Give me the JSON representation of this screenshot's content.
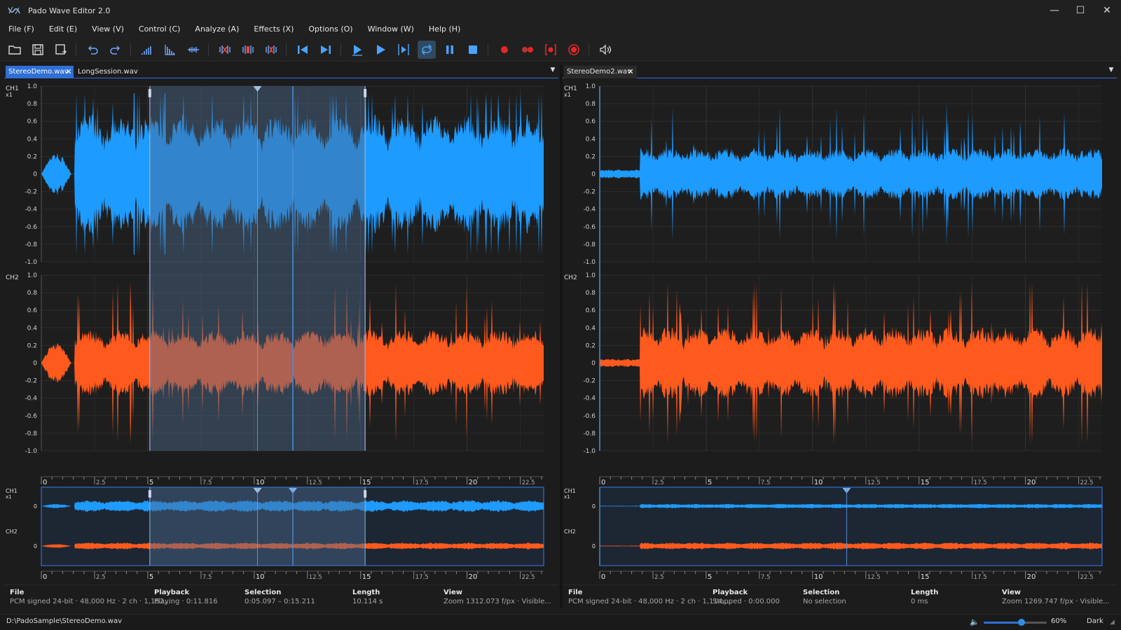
{
  "app": {
    "title": "Pado Wave Editor 2.0"
  },
  "window_controls": {
    "minimize": "—",
    "maximize": "☐",
    "close": "✕"
  },
  "menu": [
    "File (F)",
    "Edit (E)",
    "View (V)",
    "Control (C)",
    "Analyze (A)",
    "Effects (X)",
    "Options (O)",
    "Window (W)",
    "Help (H)"
  ],
  "toolbar": [
    {
      "name": "open-folder-icon",
      "color": "#d9d9d9"
    },
    {
      "name": "save-icon",
      "color": "#d9d9d9"
    },
    {
      "name": "save-as-icon",
      "color": "#d9d9d9"
    },
    {
      "name": "undo-icon",
      "color": "#6fa8ff"
    },
    {
      "name": "redo-icon",
      "color": "#6fa8ff"
    },
    {
      "name": "spectrum-icon",
      "color": "#6fa8ff"
    },
    {
      "name": "histogram-icon",
      "color": "#6fa8ff"
    },
    {
      "name": "normalize-icon",
      "color": "#6fa8ff"
    },
    {
      "name": "trim-icon",
      "color": "#e64545"
    },
    {
      "name": "silence-icon",
      "color": "#e64545"
    },
    {
      "name": "cut-channel-icon",
      "color": "#e64545"
    },
    {
      "name": "go-start-icon",
      "color": "#4aa3ff"
    },
    {
      "name": "go-end-icon",
      "color": "#4aa3ff"
    },
    {
      "name": "play-from-cursor-icon",
      "color": "#4aa3ff"
    },
    {
      "name": "play-icon",
      "color": "#4aa3ff"
    },
    {
      "name": "play-selection-icon",
      "color": "#4aa3ff"
    },
    {
      "name": "loop-icon",
      "color": "#4aa3ff"
    },
    {
      "name": "pause-icon",
      "color": "#4aa3ff"
    },
    {
      "name": "stop-icon",
      "color": "#4aa3ff"
    },
    {
      "name": "record-icon",
      "color": "#e62626"
    },
    {
      "name": "record-append-icon",
      "color": "#e62626"
    },
    {
      "name": "record-punch-icon",
      "color": "#e62626"
    },
    {
      "name": "record-monitor-icon",
      "color": "#e62626"
    },
    {
      "name": "speech-icon",
      "color": "#d9d9d9"
    }
  ],
  "panes": [
    {
      "tabs": [
        {
          "label": "StereoDemo.wav",
          "active": true,
          "closable": true
        },
        {
          "label": "LongSession.wav",
          "active": false,
          "closable": false
        }
      ],
      "ch1_label": "CH1",
      "ch2_label": "CH2",
      "zoom_label": "x1",
      "y_ticks": [
        "1.0",
        "0.8",
        "0.6",
        "0.4",
        "0.2",
        "0",
        "-0.2",
        "-0.4",
        "-0.6",
        "-0.8",
        "-1.0"
      ],
      "overview_tick": "0",
      "x_ticks": [
        "0",
        "2.5",
        "5",
        "7.5",
        "10",
        "12.5",
        "15",
        "17.5",
        "20",
        "22.5"
      ],
      "selection_start_s": 5.097,
      "selection_end_s": 15.211,
      "playhead_s": 11.816,
      "info": {
        "file_label": "File",
        "file_value": "PCM signed 24-bit · 48,000 Hz · 2 ch · 1,152,...",
        "playback_label": "Playback",
        "playback_value": "Playing · 0:11.816",
        "selection_label": "Selection",
        "selection_value": "0:05.097 – 0:15.211",
        "length_label": "Length",
        "length_value": "10.114 s",
        "view_label": "View",
        "view_value": "Zoom 1312.073 f/px · Visible..."
      }
    },
    {
      "tabs": [
        {
          "label": "StereoDemo2.wav",
          "active": false,
          "closable": true
        }
      ],
      "ch1_label": "CH1",
      "ch2_label": "CH2",
      "zoom_label": "x1",
      "y_ticks": [
        "1.0",
        "0.8",
        "0.6",
        "0.4",
        "0.2",
        "0",
        "-0.2",
        "-0.4",
        "-0.6",
        "-0.8",
        "-1.0"
      ],
      "overview_tick": "0",
      "x_ticks": [
        "0",
        "2.5",
        "5",
        "7.5",
        "10",
        "12.5",
        "15",
        "17.5",
        "20",
        "22.5"
      ],
      "playhead_s": 0,
      "info": {
        "file_label": "File",
        "file_value": "PCM signed 24-bit · 48,000 Hz · 2 ch · 1,114,...",
        "playback_label": "Playback",
        "playback_value": "Stopped · 0:00.000",
        "selection_label": "Selection",
        "selection_value": "No selection",
        "length_label": "Length",
        "length_value": "0 ms",
        "view_label": "View",
        "view_value": "Zoom 1269.747 f/px · Visible..."
      }
    }
  ],
  "status": {
    "path": "D:\\PadoSample\\StereoDemo.wav",
    "volume_percent": 60,
    "volume_label": "60%",
    "theme": "Dark"
  },
  "colors": {
    "ch1_wave": "#1e9bff",
    "ch2_wave": "#ff5a1e",
    "selection": "#4b6a8f",
    "accent": "#2f6fd6",
    "grid": "#333333"
  }
}
